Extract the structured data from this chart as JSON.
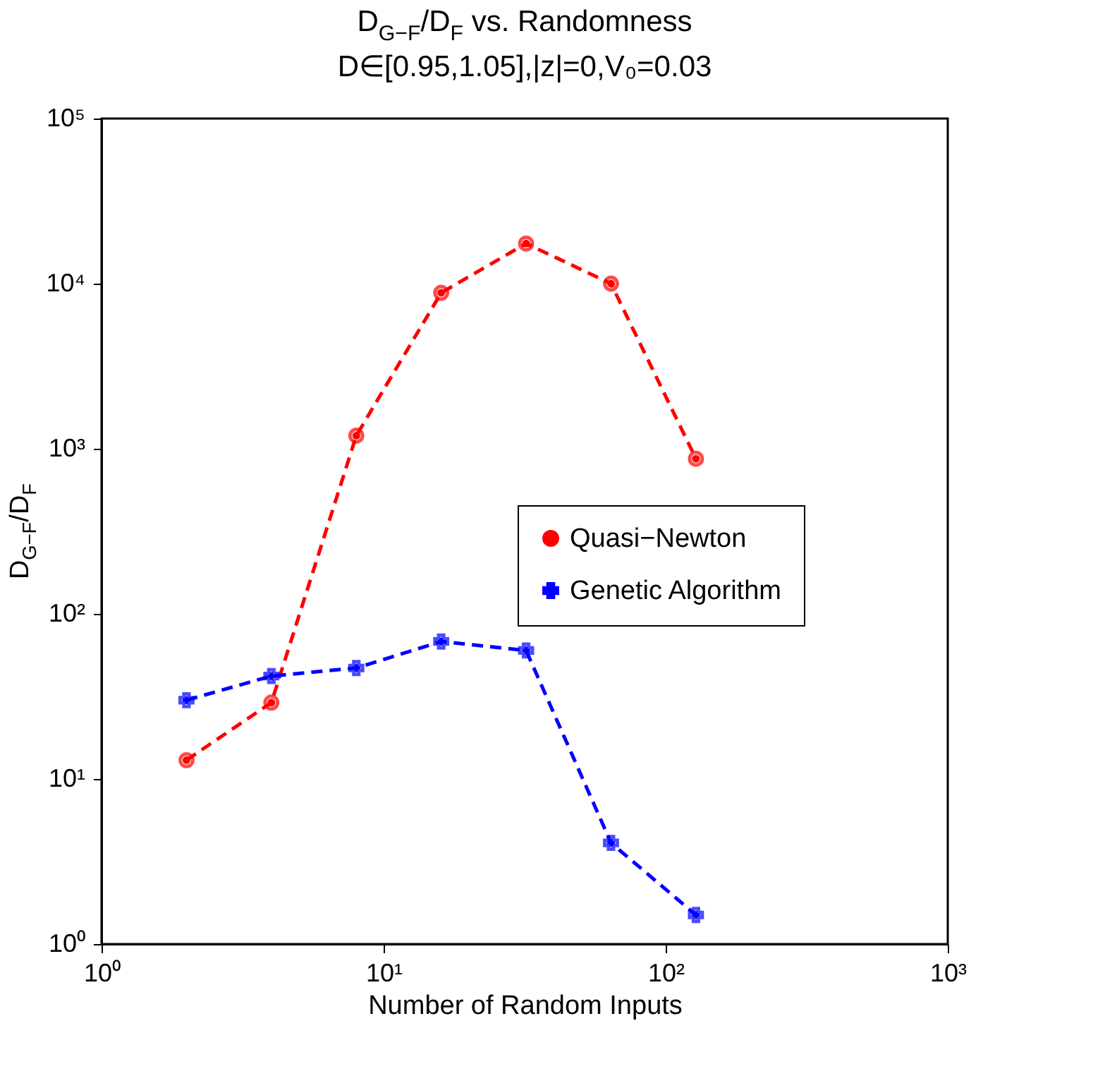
{
  "chart_data": {
    "type": "line",
    "title": "D$_{G−F}$/D$_{F}$ vs. Randomness",
    "subtitle": "D∈[0.95,1.05],|z|=0,V₀=0.03",
    "xlabel": "Number of Random Inputs",
    "ylabel": "D$_{G−F}$/D$_{F}$",
    "x": [
      2,
      4,
      8,
      16,
      32,
      64,
      128
    ],
    "series": [
      {
        "name": "Quasi−Newton",
        "color": "#ff0000",
        "marker": "circle",
        "values": [
          13,
          29,
          1200,
          8800,
          17500,
          10000,
          870
        ]
      },
      {
        "name": "Genetic Algorithm",
        "color": "#0000ff",
        "marker": "cross",
        "values": [
          30,
          42,
          47,
          68,
          60,
          4.1,
          1.5
        ]
      }
    ],
    "log": "xy",
    "xlim": [
      1,
      1000
    ],
    "ylim": [
      1,
      100000
    ],
    "xticks": [
      {
        "value": 1,
        "label": "10⁰"
      },
      {
        "value": 10,
        "label": "10¹"
      },
      {
        "value": 100,
        "label": "10²"
      },
      {
        "value": 1000,
        "label": "10³"
      }
    ],
    "yticks": [
      {
        "value": 1,
        "label": "10⁰"
      },
      {
        "value": 10,
        "label": "10¹"
      },
      {
        "value": 100,
        "label": "10²"
      },
      {
        "value": 1000,
        "label": "10³"
      },
      {
        "value": 10000,
        "label": "10⁴"
      },
      {
        "value": 100000,
        "label": "10⁵"
      }
    ],
    "grid": false,
    "legend": "right",
    "line_style": "dashed"
  }
}
